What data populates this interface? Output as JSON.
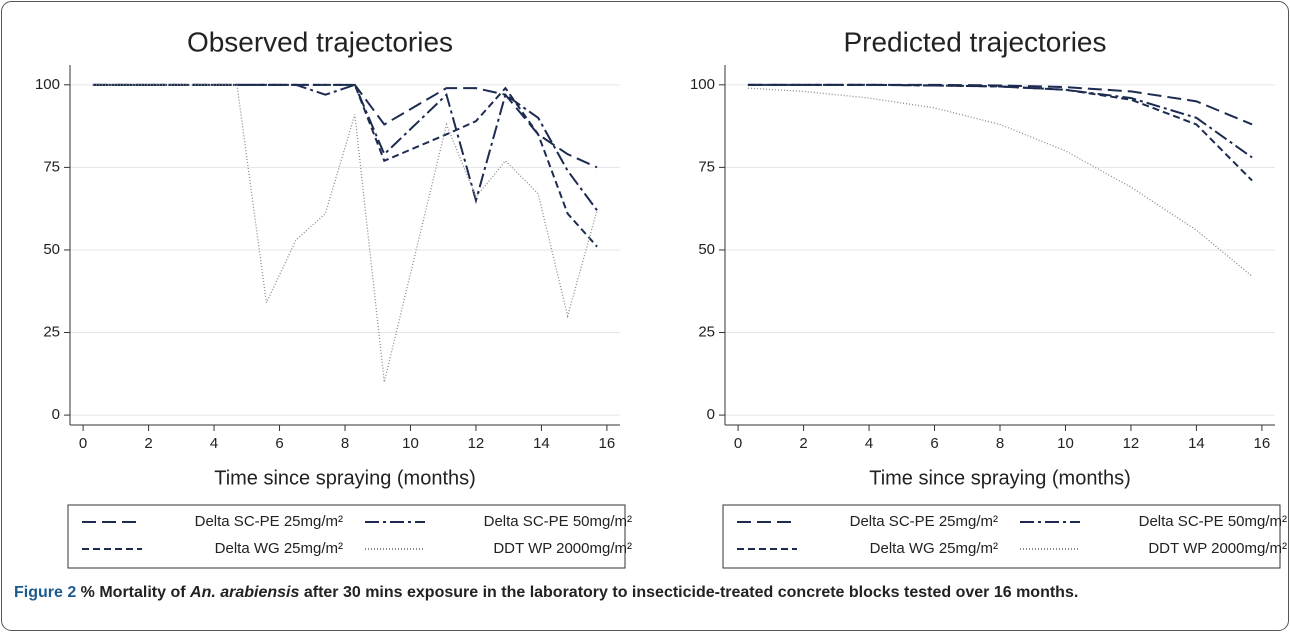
{
  "chart_data": [
    {
      "type": "line",
      "title": "Observed trajectories",
      "x_label": "Time since spraying (months)",
      "x": [
        0.3,
        4.7,
        5.6,
        6.5,
        7.4,
        8.3,
        9.2,
        11.1,
        12.0,
        12.9,
        13.9,
        14.8,
        15.7
      ],
      "xlim": [
        -0.4,
        16.4
      ],
      "xticks": [
        0,
        2,
        4,
        6,
        8,
        10,
        12,
        14,
        16
      ],
      "ylim": [
        -3,
        106
      ],
      "yticks": [
        0,
        25,
        50,
        75,
        100
      ],
      "grid": true,
      "series": [
        {
          "name": "Delta SC-PE 25mg/m²",
          "color": "#1c2b4f",
          "dash": "14,6",
          "values": [
            100,
            100,
            100,
            100,
            100,
            100,
            88,
            99,
            99,
            97,
            85,
            79,
            75
          ]
        },
        {
          "name": "Delta SC-PE 50mg/m²",
          "color": "#1c2b4f",
          "dash": "14,4,3,4",
          "values": [
            100,
            100,
            100,
            100,
            97,
            100,
            79,
            97,
            65,
            97,
            90,
            74,
            62
          ]
        },
        {
          "name": "Delta WG 25mg/m²",
          "color": "#1c2b4f",
          "dash": "7,4",
          "values": [
            100,
            100,
            100,
            100,
            100,
            100,
            77,
            85,
            89,
            99,
            85,
            61,
            51
          ]
        },
        {
          "name": "DDT WP 2000mg/m²",
          "color": "#8a8a8a",
          "dash": "1,2",
          "values": [
            100,
            100,
            34,
            53,
            61,
            91,
            10,
            88,
            66,
            77,
            67,
            30,
            62
          ]
        }
      ]
    },
    {
      "type": "line",
      "title": "Predicted trajectories",
      "x_label": "Time since spraying (months)",
      "x": [
        0.3,
        2,
        4,
        6,
        8,
        10,
        12,
        14,
        15.7
      ],
      "xlim": [
        -0.4,
        16.4
      ],
      "xticks": [
        0,
        2,
        4,
        6,
        8,
        10,
        12,
        14,
        16
      ],
      "ylim": [
        -3,
        106
      ],
      "yticks": [
        0,
        25,
        50,
        75,
        100
      ],
      "grid": true,
      "series": [
        {
          "name": "Delta SC-PE 25mg/m²",
          "color": "#1c2b4f",
          "dash": "14,6",
          "values": [
            100,
            100,
            100,
            100,
            99.8,
            99.3,
            98,
            95,
            88
          ]
        },
        {
          "name": "Delta SC-PE 50mg/m²",
          "color": "#1c2b4f",
          "dash": "14,4,3,4",
          "values": [
            100,
            100,
            100,
            99.8,
            99.5,
            98.5,
            96,
            90,
            78
          ]
        },
        {
          "name": "Delta WG 25mg/m²",
          "color": "#1c2b4f",
          "dash": "7,4",
          "values": [
            100,
            100,
            100,
            99.8,
            99.5,
            98.5,
            95.5,
            88,
            71
          ]
        },
        {
          "name": "DDT WP 2000mg/m²",
          "color": "#8a8a8a",
          "dash": "1,2",
          "values": [
            99,
            98,
            96,
            93,
            88,
            80,
            69,
            56,
            42
          ]
        }
      ]
    }
  ],
  "caption": {
    "label": "Figure 2",
    "before": " % Mortality of ",
    "species": "An. arabiensis",
    "after": " after 30 mins exposure in the laboratory to insecticide-treated concrete blocks tested over 16 months."
  }
}
